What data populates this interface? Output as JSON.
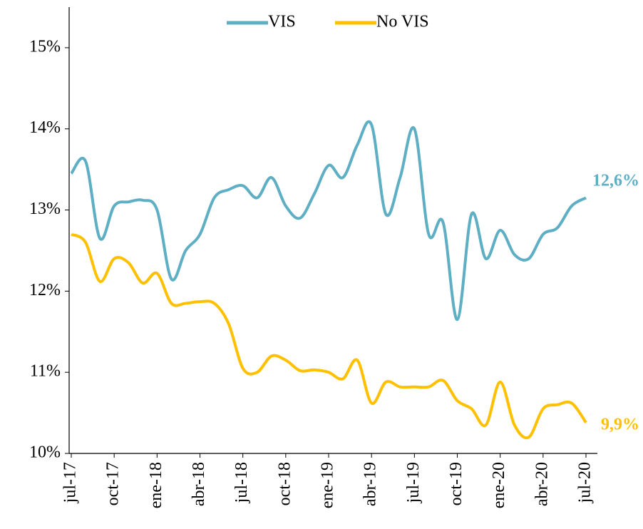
{
  "chart_data": {
    "type": "line",
    "categories": [
      "jul-17",
      null,
      null,
      "oct-17",
      null,
      null,
      "ene-18",
      null,
      null,
      "abr-18",
      null,
      null,
      "jul-18",
      null,
      null,
      "oct-18",
      null,
      null,
      "ene-19",
      null,
      null,
      "abr-19",
      null,
      null,
      "jul-19",
      null,
      null,
      "oct-19",
      null,
      null,
      "ene-20",
      null,
      null,
      "abr-20",
      null,
      null,
      "jul-20"
    ],
    "series": [
      {
        "name": "VIS",
        "color": "#5eaec4",
        "values": [
          13.45,
          13.6,
          12.65,
          13.05,
          13.1,
          13.12,
          13.0,
          12.15,
          12.5,
          12.7,
          13.15,
          13.25,
          13.3,
          13.15,
          13.4,
          13.05,
          12.9,
          13.2,
          13.55,
          13.4,
          13.8,
          14.05,
          12.95,
          13.4,
          14.0,
          12.7,
          12.85,
          11.65,
          12.95,
          12.4,
          12.75,
          12.45,
          12.4,
          12.7,
          12.78,
          13.05,
          13.15
        ]
      },
      {
        "name": "No VIS",
        "color": "#ffc000",
        "values": [
          12.7,
          12.6,
          12.12,
          12.4,
          12.35,
          12.1,
          12.22,
          11.85,
          11.85,
          11.87,
          11.85,
          11.6,
          11.05,
          11.0,
          11.2,
          11.15,
          11.02,
          11.03,
          11.0,
          10.92,
          11.15,
          10.62,
          10.88,
          10.82,
          10.82,
          10.82,
          10.9,
          10.65,
          10.55,
          10.35,
          10.88,
          10.35,
          10.2,
          10.55,
          10.6,
          10.62,
          10.38
        ]
      }
    ],
    "annotations": [
      "12,6%",
      "9,9%"
    ],
    "ylim": [
      10,
      15.5
    ],
    "yticks": [
      {
        "value": 10,
        "label": "10%"
      },
      {
        "value": 11,
        "label": "11%"
      },
      {
        "value": 12,
        "label": "12%"
      },
      {
        "value": 13,
        "label": "13%"
      },
      {
        "value": 14,
        "label": "14%"
      },
      {
        "value": 15,
        "label": "15%"
      }
    ],
    "legend": "top"
  }
}
